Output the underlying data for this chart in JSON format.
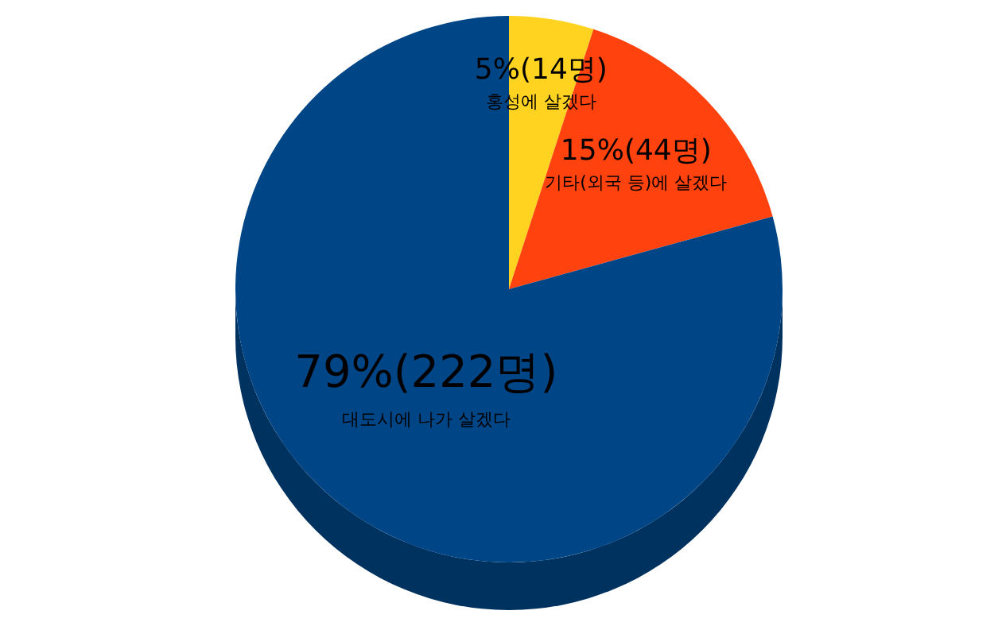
{
  "chart_data": {
    "type": "pie",
    "categories": [
      "홍성에 살겠다",
      "기타(외국 등)에 살겠다",
      "대도시에 나가 살겠다"
    ],
    "values": [
      14,
      44,
      222
    ],
    "value_labels": [
      "5%(14명)",
      "15%(44명)",
      "79%(222명)"
    ],
    "colors": [
      "#ffd320",
      "#ff420e",
      "#004586"
    ],
    "legend": false
  }
}
